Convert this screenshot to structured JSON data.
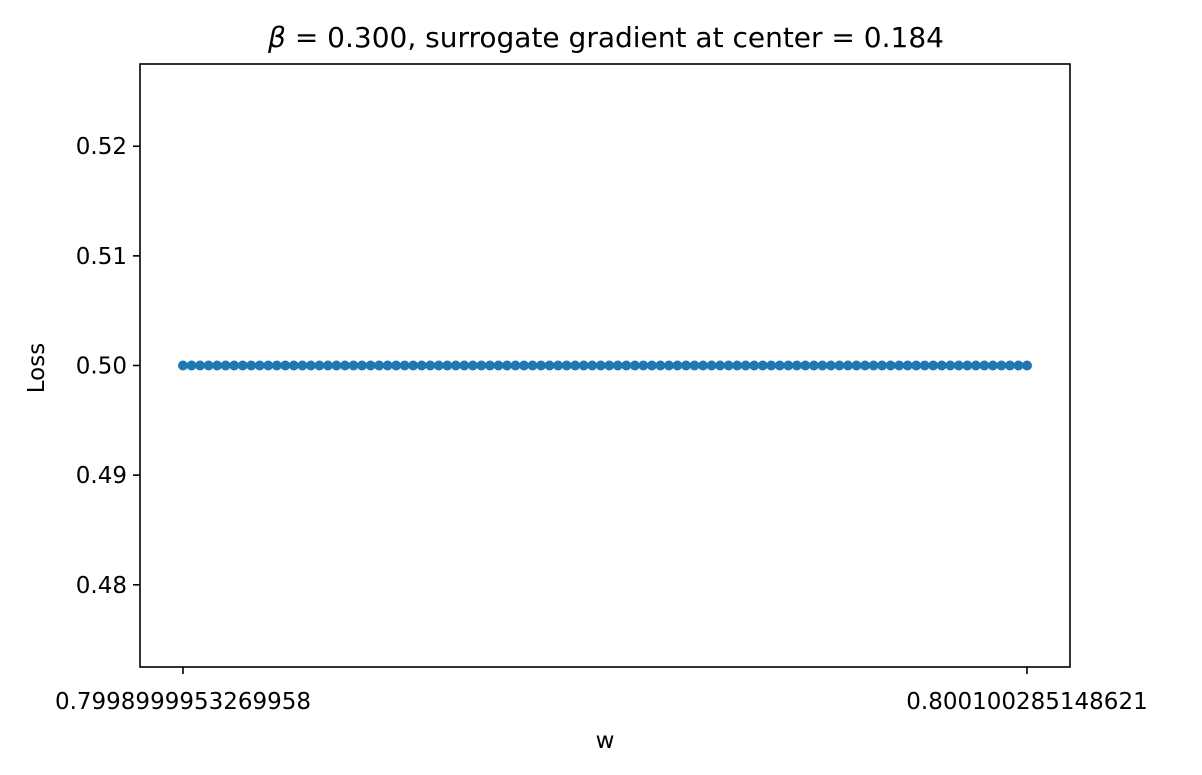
{
  "chart_data": {
    "type": "scatter",
    "title_prefix": "β",
    "title_rest": " =  0.300, surrogate gradient at center =  0.184",
    "xlabel": "w",
    "ylabel": "Loss",
    "x_tick_labels": [
      "0.7998999953269958",
      "0.800100285148621"
    ],
    "y_ticks": [
      0.48,
      0.49,
      0.5,
      0.51,
      0.52
    ],
    "y_tick_labels": [
      "0.48",
      "0.49",
      "0.50",
      "0.51",
      "0.52"
    ],
    "ylim": [
      0.4725,
      0.5275
    ],
    "x_range": [
      "0.7998999953269958",
      "0.800100285148621"
    ],
    "n_points": 100,
    "y_value": 0.5,
    "grid": false,
    "series_color": "#1f77b4"
  }
}
